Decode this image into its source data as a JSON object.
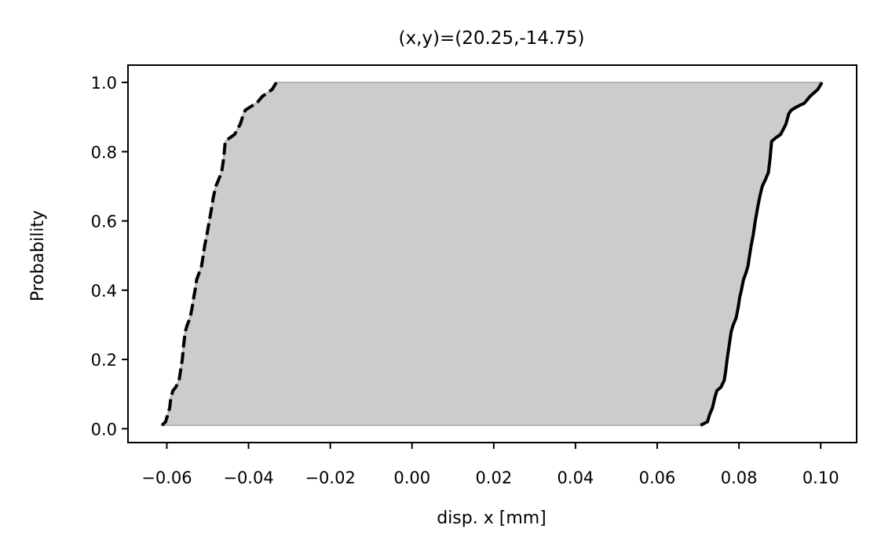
{
  "chart_data": {
    "type": "area",
    "title": "(x,y)=(20.25,-14.75)",
    "xlabel": "disp. x [mm]",
    "ylabel": "Probability",
    "xlim": [
      -0.0695,
      0.1088
    ],
    "ylim": [
      -0.04,
      1.05
    ],
    "xticks": [
      -0.06,
      -0.04,
      -0.02,
      0.0,
      0.02,
      0.04,
      0.06,
      0.08,
      0.1
    ],
    "xtick_labels": [
      "−0.06",
      "−0.04",
      "−0.02",
      "0.00",
      "0.02",
      "0.04",
      "0.06",
      "0.08",
      "0.10"
    ],
    "yticks": [
      0.0,
      0.2,
      0.4,
      0.6,
      0.8,
      1.0
    ],
    "ytick_labels": [
      "0.0",
      "0.2",
      "0.4",
      "0.6",
      "0.8",
      "1.0"
    ],
    "grid": false,
    "fill_color": "#cccccc",
    "line_color": "#000000",
    "series": [
      {
        "style": "dashed",
        "x": [
          -0.0612,
          -0.0603,
          -0.0598,
          -0.0593,
          -0.059,
          -0.0585,
          -0.0578,
          -0.057,
          -0.0566,
          -0.0562,
          -0.0559,
          -0.0555,
          -0.055,
          -0.0543,
          -0.0538,
          -0.0534,
          -0.0531,
          -0.0527,
          -0.0521,
          -0.0515,
          -0.0511,
          -0.0507,
          -0.0502,
          -0.0496,
          -0.049,
          -0.0486,
          -0.048,
          -0.0473,
          -0.0466,
          -0.0461,
          -0.0457,
          -0.0446,
          -0.0434,
          -0.042,
          -0.0412,
          -0.0408,
          -0.0395,
          -0.038,
          -0.0366,
          -0.0342,
          -0.0332
        ],
        "y": [
          0.01,
          0.02,
          0.04,
          0.06,
          0.09,
          0.11,
          0.12,
          0.14,
          0.17,
          0.2,
          0.24,
          0.28,
          0.3,
          0.32,
          0.35,
          0.38,
          0.4,
          0.43,
          0.45,
          0.47,
          0.5,
          0.53,
          0.56,
          0.6,
          0.64,
          0.67,
          0.7,
          0.72,
          0.74,
          0.78,
          0.83,
          0.84,
          0.85,
          0.88,
          0.91,
          0.92,
          0.93,
          0.94,
          0.96,
          0.98,
          1.0
        ]
      },
      {
        "style": "solid",
        "x": [
          0.0706,
          0.0723,
          0.0728,
          0.0735,
          0.0741,
          0.0746,
          0.0756,
          0.0764,
          0.0768,
          0.0771,
          0.0776,
          0.0781,
          0.0786,
          0.0793,
          0.0798,
          0.0802,
          0.0806,
          0.0811,
          0.0817,
          0.0822,
          0.0826,
          0.083,
          0.0835,
          0.084,
          0.0846,
          0.0851,
          0.0857,
          0.0865,
          0.0872,
          0.0876,
          0.088,
          0.089,
          0.0902,
          0.0915,
          0.0922,
          0.0928,
          0.0942,
          0.096,
          0.0974,
          0.0993,
          0.1003
        ],
        "y": [
          0.01,
          0.02,
          0.04,
          0.06,
          0.09,
          0.11,
          0.12,
          0.14,
          0.17,
          0.2,
          0.24,
          0.28,
          0.3,
          0.32,
          0.35,
          0.38,
          0.4,
          0.43,
          0.45,
          0.47,
          0.5,
          0.53,
          0.56,
          0.6,
          0.64,
          0.67,
          0.7,
          0.72,
          0.74,
          0.78,
          0.83,
          0.84,
          0.85,
          0.88,
          0.91,
          0.92,
          0.93,
          0.94,
          0.96,
          0.98,
          1.0
        ]
      }
    ]
  }
}
